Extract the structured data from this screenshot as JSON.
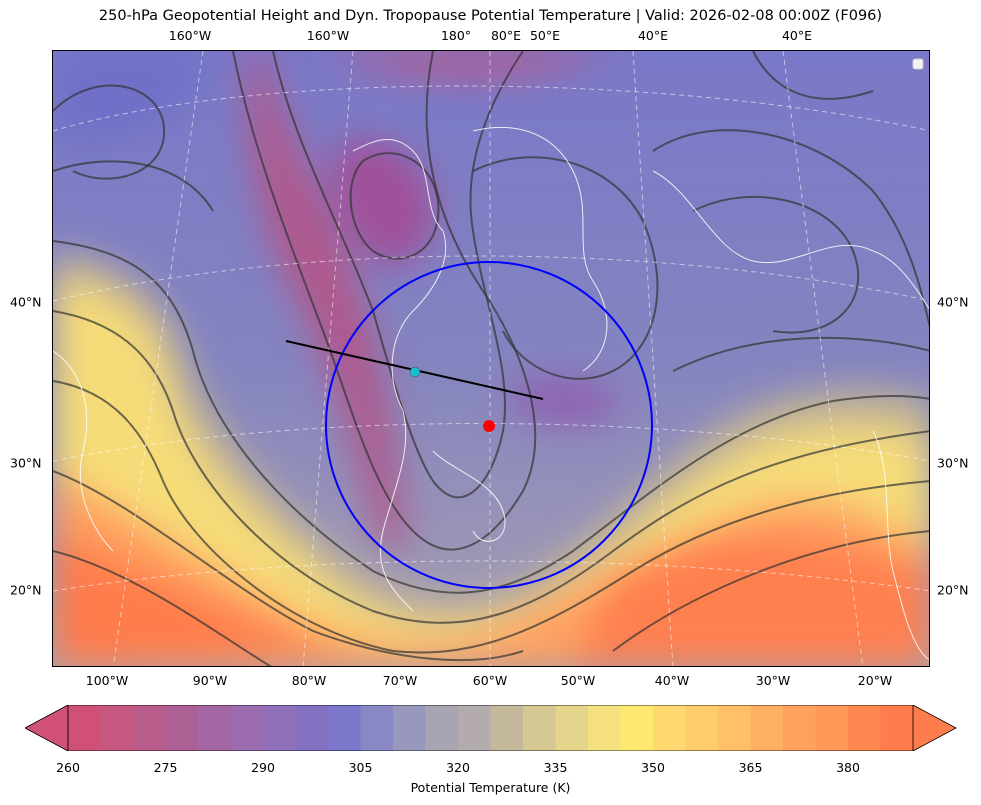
{
  "title": "250-hPa Geopotential Height and Dyn. Tropopause Potential Temperature   |  Valid: 2026-02-08 00:00Z (F096)",
  "map": {
    "top_lon_labels": [
      "160°W",
      "160°W",
      "180°",
      "80°E",
      "50°E",
      "40°E",
      "40°E"
    ],
    "bottom_lon_labels": [
      "100°W",
      "90°W",
      "80°W",
      "70°W",
      "60°W",
      "50°W",
      "40°W",
      "30°W",
      "20°W"
    ],
    "left_lat_labels": [
      "40°N",
      "30°N",
      "20°N"
    ],
    "right_lat_labels": [
      "40°N",
      "30°N",
      "20°N"
    ],
    "markers": {
      "center_point_color": "#ff0000",
      "secondary_point_color": "#17becf",
      "circle_color": "#0000ff",
      "line_color": "#000000"
    }
  },
  "colorbar": {
    "label": "Potential Temperature (K)",
    "min": 260,
    "max": 390,
    "step": 5,
    "tick_labels": [
      "260",
      "275",
      "290",
      "305",
      "320",
      "335",
      "350",
      "365",
      "380"
    ],
    "extend": "both",
    "colors": [
      "#d05078",
      "#c45880",
      "#b85c8c",
      "#ac6094",
      "#a466a4",
      "#9c6cb0",
      "#9070b8",
      "#8470c0",
      "#7c78cc",
      "#8888c4",
      "#9898bc",
      "#a8a4b4",
      "#b4acac",
      "#c4b89c",
      "#d4c894",
      "#e4d48c",
      "#f4e080",
      "#ffe870",
      "#ffd870",
      "#ffcc6c",
      "#ffc068",
      "#ffb060",
      "#ffa05c",
      "#ff9858",
      "#ff8850",
      "#ff7c4c"
    ]
  }
}
